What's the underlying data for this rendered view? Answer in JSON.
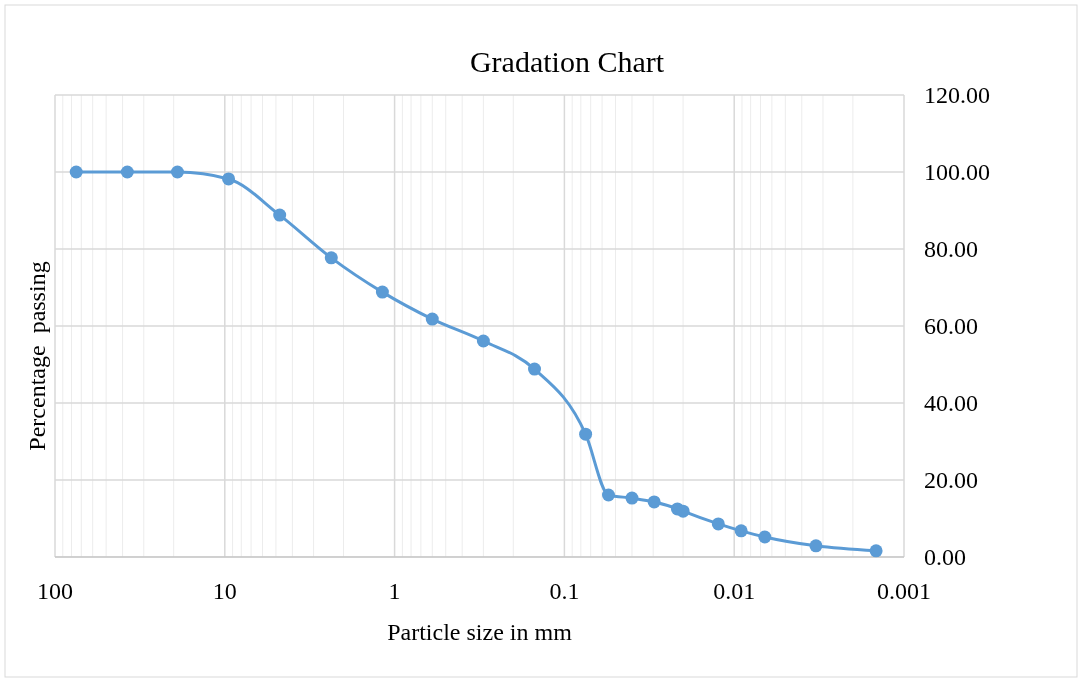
{
  "chart_data": {
    "type": "line",
    "title": "Gradation Chart",
    "xlabel": "Particle size in mm",
    "ylabel": "Percentage  passing",
    "x": [
      75,
      37.5,
      19,
      9.5,
      4.75,
      2.36,
      1.18,
      0.6,
      0.3,
      0.15,
      0.075,
      0.055,
      0.04,
      0.0296,
      0.0216,
      0.02,
      0.0124,
      0.0091,
      0.0066,
      0.0033,
      0.00146
    ],
    "series": [
      {
        "color": "#5b9bd5",
        "values": [
          100,
          100,
          100,
          98.2,
          88.8,
          77.7,
          68.8,
          61.8,
          56.1,
          48.8,
          31.9,
          16.1,
          15.3,
          14.3,
          12.5,
          11.9,
          8.6,
          6.8,
          5.2,
          2.9,
          1.6
        ]
      }
    ],
    "log": "x",
    "xlim": [
      100,
      0.001
    ],
    "xticks": [
      100,
      10,
      1,
      0.1,
      0.01,
      0.001
    ],
    "ylim": [
      0,
      120
    ],
    "yticks": [
      {
        "value": 0,
        "label": "0.00"
      },
      {
        "value": 20,
        "label": "20.00"
      },
      {
        "value": 40,
        "label": "40.00"
      },
      {
        "value": 60,
        "label": "60.00"
      },
      {
        "value": 80,
        "label": "80.00"
      },
      {
        "value": 100,
        "label": "100.00"
      },
      {
        "value": 120,
        "label": "120.00"
      }
    ],
    "grid": true,
    "marker": "circle",
    "line_style": "solid"
  }
}
